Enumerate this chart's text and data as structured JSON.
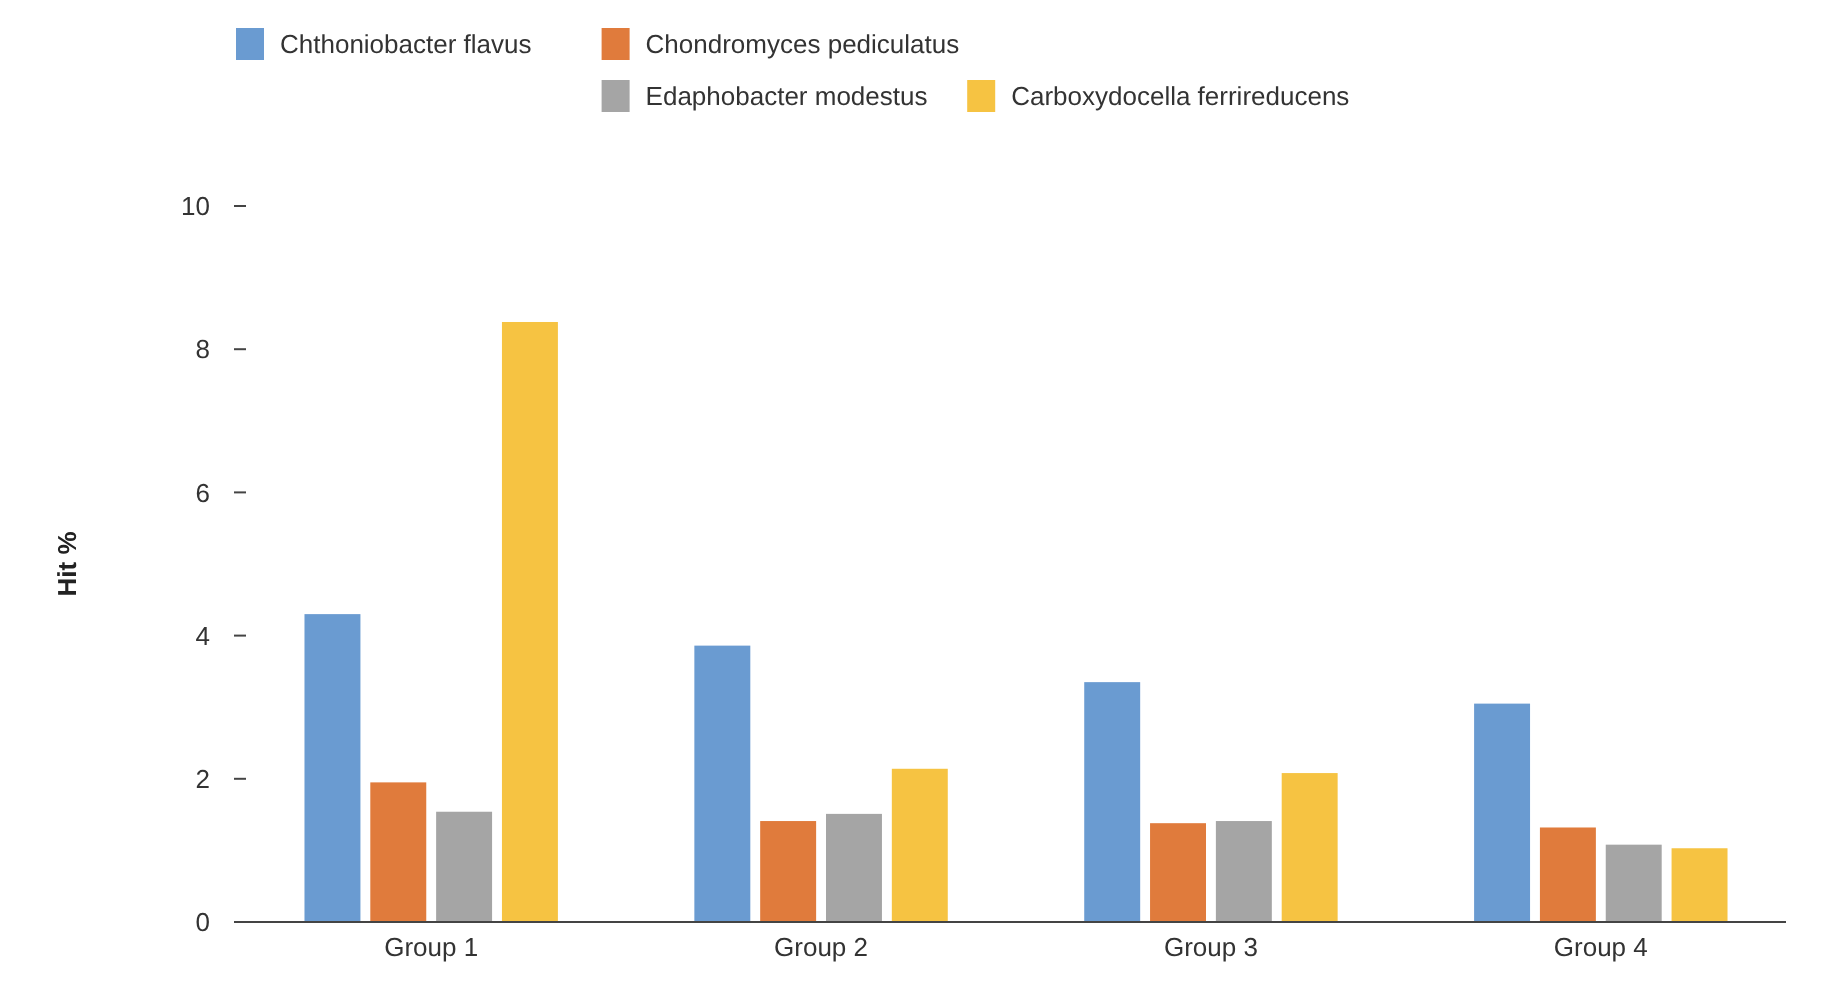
{
  "chart_data": {
    "type": "bar",
    "ylabel": "Hit %",
    "categories": [
      "Group 1",
      "Group 2",
      "Group 3",
      "Group 4"
    ],
    "series": [
      {
        "name": "Chthoniobacter flavus",
        "color": "#6a9bd1",
        "values": [
          4.3,
          3.86,
          3.35,
          3.05
        ]
      },
      {
        "name": "Chondromyces pediculatus",
        "color": "#e07b3c",
        "values": [
          1.95,
          1.41,
          1.38,
          1.32
        ]
      },
      {
        "name": "Edaphobacter modestus",
        "color": "#a5a5a5",
        "values": [
          1.54,
          1.51,
          1.41,
          1.08
        ]
      },
      {
        "name": "Carboxydocella ferrireducens",
        "color": "#f6c342",
        "values": [
          8.38,
          2.14,
          2.08,
          1.03
        ]
      }
    ],
    "ylim": [
      0,
      10
    ],
    "yticks": [
      0,
      2,
      4,
      6,
      8,
      10
    ],
    "grid": false,
    "legend": "top"
  }
}
